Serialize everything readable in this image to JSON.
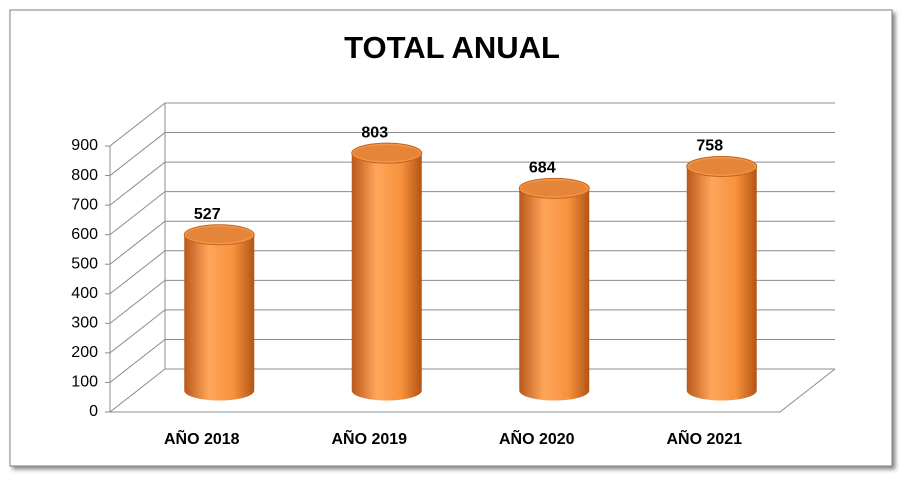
{
  "chart_data": {
    "type": "bar",
    "title": "TOTAL ANUAL",
    "categories": [
      "AÑO 2018",
      "AÑO 2019",
      "AÑO 2020",
      "AÑO 2021"
    ],
    "values": [
      527,
      803,
      684,
      758
    ],
    "color": "#f79646",
    "ylim": [
      0,
      900
    ],
    "yticks": [
      0,
      100,
      200,
      300,
      400,
      500,
      600,
      700,
      800,
      900
    ],
    "grid": true
  }
}
